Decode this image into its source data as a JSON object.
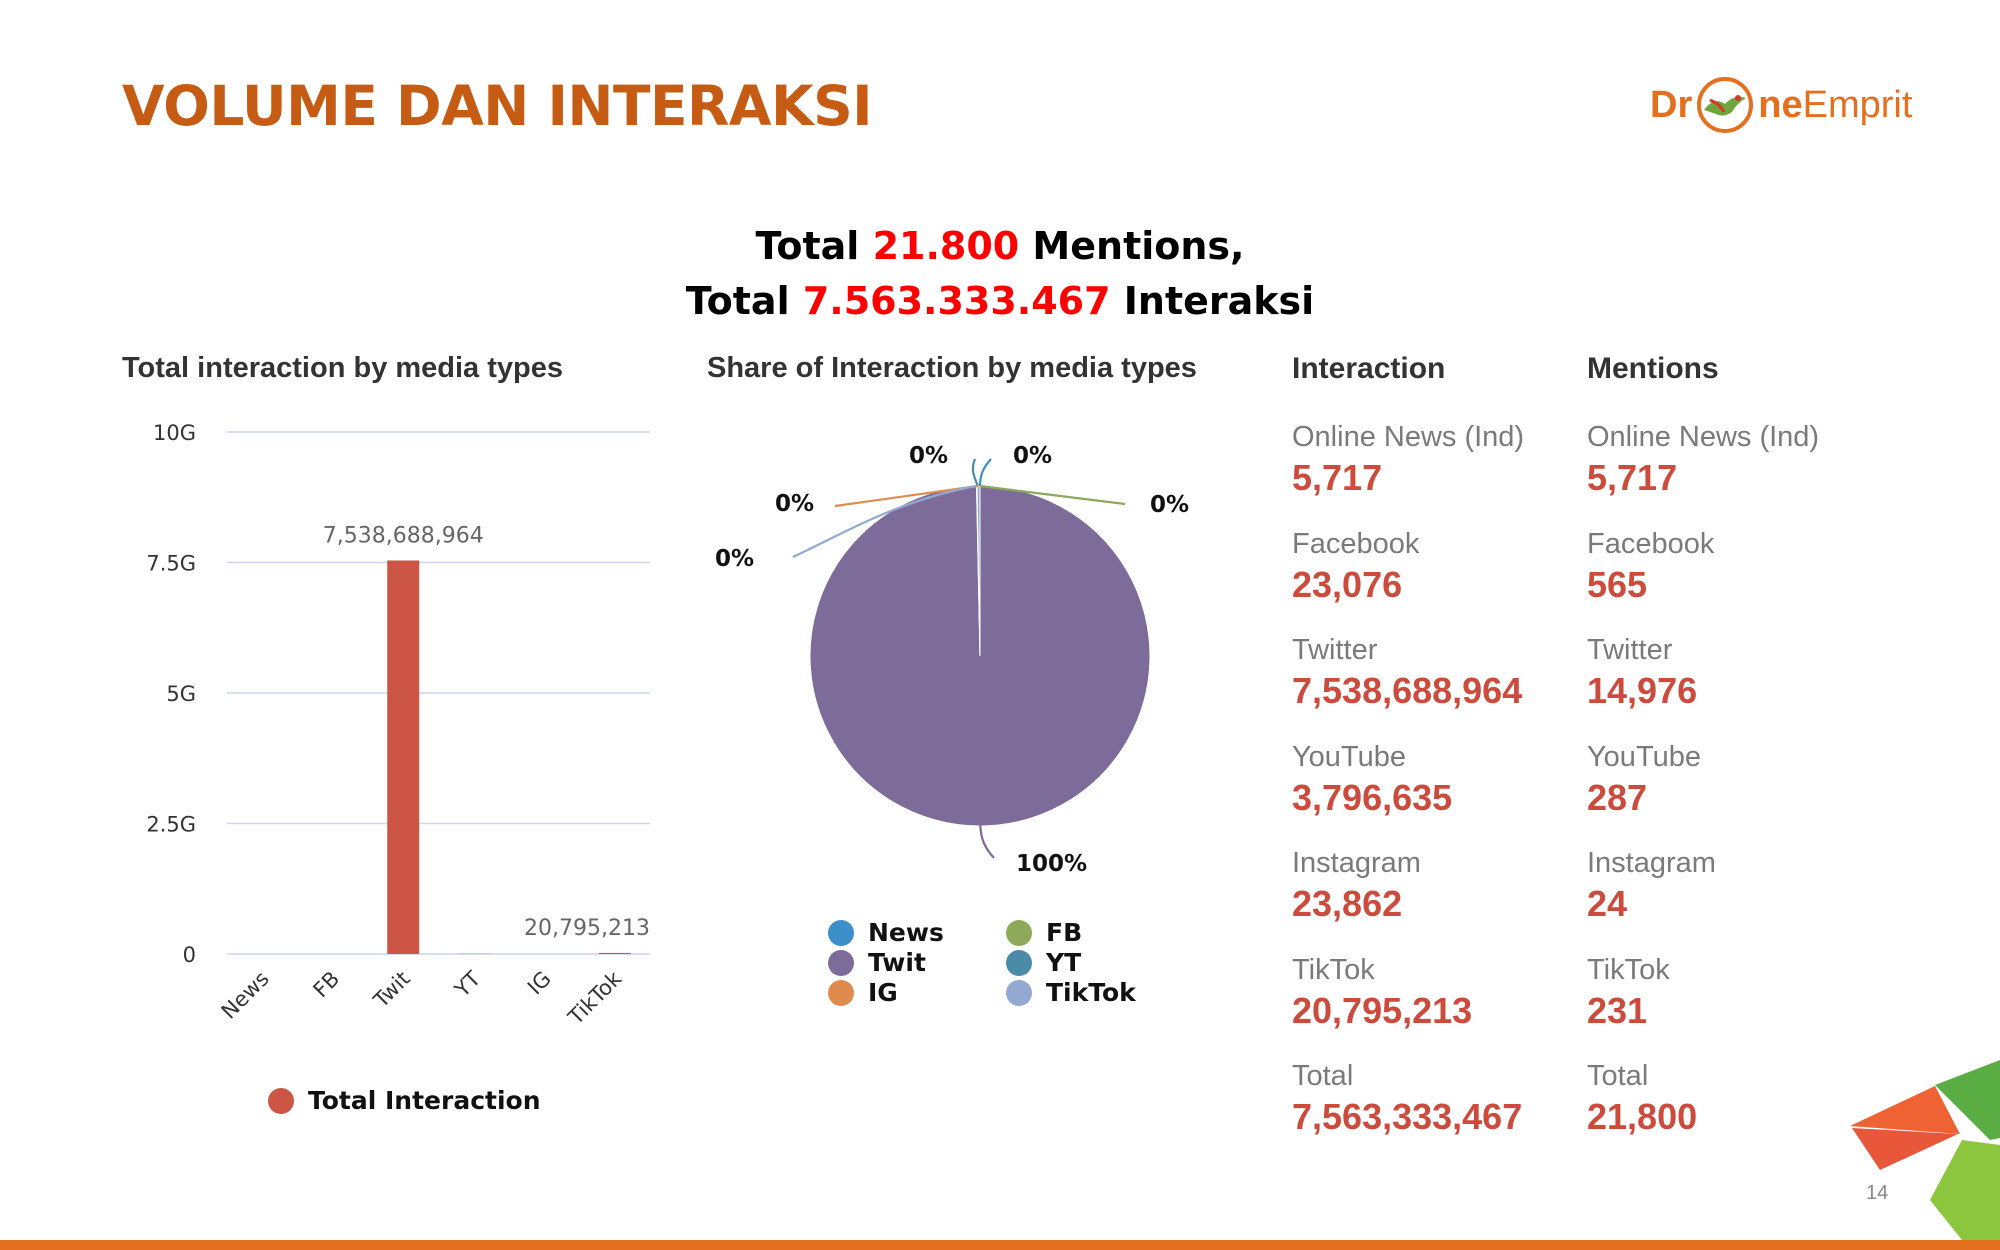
{
  "slide": {
    "title": "VOLUME DAN INTERAKSI",
    "page_number": "14",
    "logo": {
      "part1": "Dr",
      "part2": "ne",
      "part3": "Emprit"
    },
    "headline": {
      "line1_prefix": "Total ",
      "line1_number": "21.800",
      "line1_suffix": " Mentions,",
      "line2_prefix": "Total ",
      "line2_number": "7.563.333.467",
      "line2_suffix": " Interaksi"
    }
  },
  "colors": {
    "title": "#c65c14",
    "highlight": "#ff0000",
    "bar": "#cc5545",
    "value_text": "#cc4b3c",
    "news": "#3d8fca",
    "fb": "#8ea95a",
    "twit": "#7d6b99",
    "yt": "#4a8ba8",
    "ig": "#e08b4e",
    "tiktok": "#93a9d1"
  },
  "chart_data": [
    {
      "type": "bar",
      "title": "Total interaction by media types",
      "categories": [
        "News",
        "FB",
        "Twit",
        "YT",
        "IG",
        "TikTok"
      ],
      "series": [
        {
          "name": "Total Interaction",
          "values": [
            5717,
            23076,
            7538688964,
            3796635,
            23862,
            20795213
          ]
        }
      ],
      "data_labels": [
        {
          "category": "Twit",
          "text": "7,538,688,964"
        },
        {
          "category": "TikTok",
          "text": "20,795,213"
        }
      ],
      "y_ticks": [
        {
          "value": 0,
          "label": "0"
        },
        {
          "value": 2500000000,
          "label": "2.5G"
        },
        {
          "value": 5000000000,
          "label": "5G"
        },
        {
          "value": 7500000000,
          "label": "7.5G"
        },
        {
          "value": 10000000000,
          "label": "10G"
        }
      ],
      "ylim": [
        0,
        10000000000
      ],
      "grid": true,
      "legend": "bottom"
    },
    {
      "type": "pie",
      "title": "Share of Interaction by media types",
      "slices": [
        {
          "name": "News",
          "value": 5717,
          "label": "0%"
        },
        {
          "name": "FB",
          "value": 23076,
          "label": "0%"
        },
        {
          "name": "Twit",
          "value": 7538688964,
          "label": "100%"
        },
        {
          "name": "YT",
          "value": 3796635,
          "label": "0%"
        },
        {
          "name": "IG",
          "value": 23862,
          "label": "0%"
        },
        {
          "name": "TikTok",
          "value": 20795213,
          "label": "0%"
        }
      ],
      "legend": "bottom"
    },
    {
      "type": "table",
      "columns": [
        {
          "header": "Interaction",
          "rows": [
            {
              "label": "Online News (Ind)",
              "value": "5,717"
            },
            {
              "label": "Facebook",
              "value": "23,076"
            },
            {
              "label": "Twitter",
              "value": "7,538,688,964"
            },
            {
              "label": "YouTube",
              "value": "3,796,635"
            },
            {
              "label": "Instagram",
              "value": "23,862"
            },
            {
              "label": "TikTok",
              "value": "20,795,213"
            },
            {
              "label": "Total",
              "value": "7,563,333,467"
            }
          ]
        },
        {
          "header": "Mentions",
          "rows": [
            {
              "label": "Online News (Ind)",
              "value": "5,717"
            },
            {
              "label": "Facebook",
              "value": "565"
            },
            {
              "label": "Twitter",
              "value": "14,976"
            },
            {
              "label": "YouTube",
              "value": "287"
            },
            {
              "label": "Instagram",
              "value": "24"
            },
            {
              "label": "TikTok",
              "value": "231"
            },
            {
              "label": "Total",
              "value": "21,800"
            }
          ]
        }
      ]
    }
  ]
}
